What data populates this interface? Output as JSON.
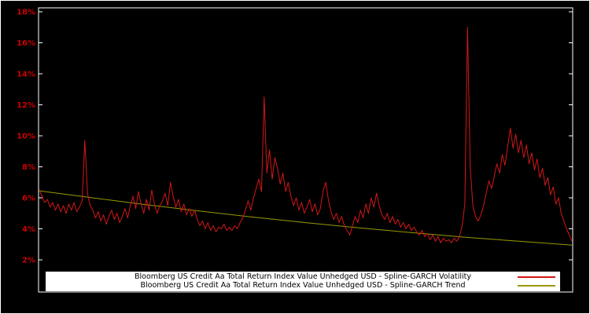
{
  "chart_data": {
    "type": "line",
    "title": "",
    "xlabel": "",
    "ylabel": "",
    "background": "#000000",
    "frame_color": "#ffffff",
    "tick_color": "#cc0000",
    "ylim": [
      2,
      18
    ],
    "grid": false,
    "legend_position": "bottom-center",
    "y_ticks": [
      {
        "value": 2,
        "label": "2%"
      },
      {
        "value": 4,
        "label": "4%"
      },
      {
        "value": 6,
        "label": "6%"
      },
      {
        "value": 8,
        "label": "8%"
      },
      {
        "value": 10,
        "label": "10%"
      },
      {
        "value": 12,
        "label": "12%"
      },
      {
        "value": 14,
        "label": "14%"
      },
      {
        "value": 16,
        "label": "16%"
      },
      {
        "value": 18,
        "label": "18%"
      }
    ],
    "series": [
      {
        "name": "Bloomberg US Credit Aa Total Return Index Value Unhedged USD - Spline-GARCH Volatility",
        "color": "#d41717",
        "values": [
          6.5,
          6.1,
          5.7,
          5.9,
          5.4,
          5.7,
          5.2,
          5.6,
          5.1,
          5.5,
          5.0,
          5.6,
          5.2,
          5.7,
          5.1,
          5.4,
          5.8,
          9.7,
          6.3,
          5.5,
          5.2,
          4.7,
          5.1,
          4.5,
          4.9,
          4.3,
          4.8,
          5.2,
          4.6,
          5.0,
          4.4,
          4.8,
          5.3,
          4.7,
          5.5,
          6.1,
          5.3,
          6.4,
          5.6,
          5.0,
          5.9,
          5.2,
          6.5,
          5.6,
          5.0,
          5.5,
          5.8,
          6.3,
          5.5,
          7.0,
          6.1,
          5.4,
          5.9,
          5.1,
          5.6,
          4.9,
          5.3,
          4.8,
          5.2,
          4.6,
          4.2,
          4.5,
          4.0,
          4.4,
          3.9,
          4.2,
          3.8,
          4.1,
          4.0,
          4.3,
          3.9,
          4.1,
          3.9,
          4.2,
          4.0,
          4.4,
          4.7,
          5.2,
          5.8,
          5.2,
          6.0,
          6.6,
          7.2,
          6.4,
          12.5,
          7.6,
          9.1,
          7.2,
          8.6,
          7.9,
          6.9,
          7.6,
          6.4,
          7.0,
          6.1,
          5.5,
          6.0,
          5.2,
          5.7,
          5.0,
          5.4,
          5.9,
          5.1,
          5.6,
          4.9,
          5.3,
          6.4,
          7.0,
          5.9,
          5.1,
          4.6,
          5.0,
          4.4,
          4.8,
          4.2,
          3.9,
          3.6,
          4.2,
          4.8,
          4.4,
          5.2,
          4.7,
          5.6,
          5.0,
          6.0,
          5.4,
          6.3,
          5.5,
          4.9,
          4.6,
          5.0,
          4.4,
          4.8,
          4.3,
          4.6,
          4.1,
          4.4,
          4.0,
          4.3,
          3.9,
          4.1,
          3.8,
          3.6,
          3.9,
          3.5,
          3.7,
          3.3,
          3.6,
          3.2,
          3.5,
          3.1,
          3.4,
          3.2,
          3.3,
          3.1,
          3.4,
          3.2,
          3.5,
          4.2,
          5.6,
          17.0,
          8.0,
          5.5,
          4.8,
          4.5,
          4.9,
          5.5,
          6.3,
          7.1,
          6.6,
          7.4,
          8.2,
          7.6,
          8.8,
          8.1,
          9.3,
          10.5,
          9.2,
          10.1,
          8.9,
          9.7,
          8.6,
          9.4,
          8.2,
          8.9,
          7.8,
          8.5,
          7.3,
          7.9,
          6.8,
          7.3,
          6.2,
          6.7,
          5.6,
          6.0,
          5.0,
          4.5,
          4.0,
          3.6,
          3.2
        ]
      },
      {
        "name": "Bloomberg US Credit Aa Total Return Index Value Unhedged USD - Spline-GARCH Trend",
        "color": "#999900",
        "values": [
          6.45,
          6.0,
          5.56,
          5.15,
          4.76,
          4.4,
          4.06,
          3.75,
          3.46,
          3.2,
          2.95
        ]
      }
    ]
  }
}
